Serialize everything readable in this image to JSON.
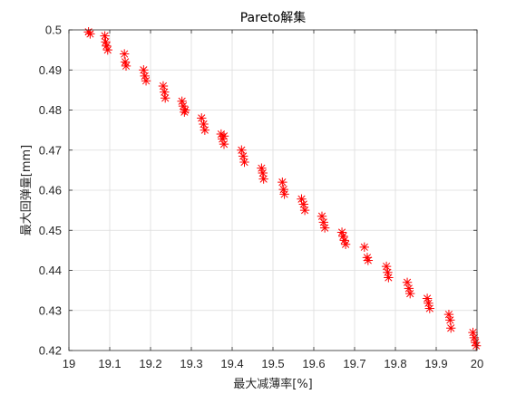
{
  "chart_data": {
    "type": "scatter",
    "title": "Pareto解集",
    "xlabel": "最大减薄率[%]",
    "ylabel": "最大回弹量[mm]",
    "xlim": [
      19,
      20
    ],
    "ylim": [
      0.42,
      0.5
    ],
    "xticks": [
      "19",
      "19.1",
      "19.2",
      "19.3",
      "19.4",
      "19.5",
      "19.6",
      "19.7",
      "19.8",
      "19.9",
      "20"
    ],
    "yticks": [
      "0.42",
      "0.43",
      "0.44",
      "0.45",
      "0.46",
      "0.47",
      "0.48",
      "0.49",
      "0.5"
    ],
    "grid": true,
    "marker": "asterisk",
    "marker_color": "#ff0000",
    "series": [
      {
        "x": [
          19.048,
          19.052,
          19.088,
          19.09,
          19.092,
          19.095,
          19.136,
          19.138,
          19.14,
          19.183,
          19.186,
          19.189,
          19.231,
          19.234,
          19.236,
          19.277,
          19.28,
          19.283,
          19.285,
          19.325,
          19.33,
          19.333,
          19.373,
          19.376,
          19.38,
          19.38,
          19.423,
          19.427,
          19.43,
          19.472,
          19.475,
          19.477,
          19.523,
          19.526,
          19.528,
          19.57,
          19.575,
          19.578,
          19.62,
          19.624,
          19.627,
          19.669,
          19.672,
          19.675,
          19.678,
          19.724,
          19.731,
          19.733,
          19.778,
          19.781,
          19.783,
          19.829,
          19.833,
          19.836,
          19.878,
          19.881,
          19.884,
          19.931,
          19.934,
          19.936,
          19.99,
          19.993,
          19.996,
          19.998
        ],
        "y": [
          0.4995,
          0.499,
          0.4985,
          0.497,
          0.496,
          0.495,
          0.494,
          0.492,
          0.491,
          0.49,
          0.4885,
          0.4873,
          0.486,
          0.4845,
          0.483,
          0.4822,
          0.481,
          0.4795,
          0.48,
          0.478,
          0.4765,
          0.475,
          0.474,
          0.4728,
          0.4715,
          0.4735,
          0.47,
          0.4685,
          0.467,
          0.4655,
          0.4643,
          0.4628,
          0.462,
          0.4602,
          0.459,
          0.4578,
          0.4565,
          0.455,
          0.4535,
          0.452,
          0.4506,
          0.4495,
          0.4485,
          0.4475,
          0.4465,
          0.4458,
          0.4432,
          0.4425,
          0.441,
          0.4395,
          0.4382,
          0.437,
          0.4355,
          0.4342,
          0.433,
          0.4318,
          0.4305,
          0.429,
          0.4276,
          0.4256,
          0.4245,
          0.4232,
          0.422,
          0.4212
        ]
      }
    ]
  }
}
